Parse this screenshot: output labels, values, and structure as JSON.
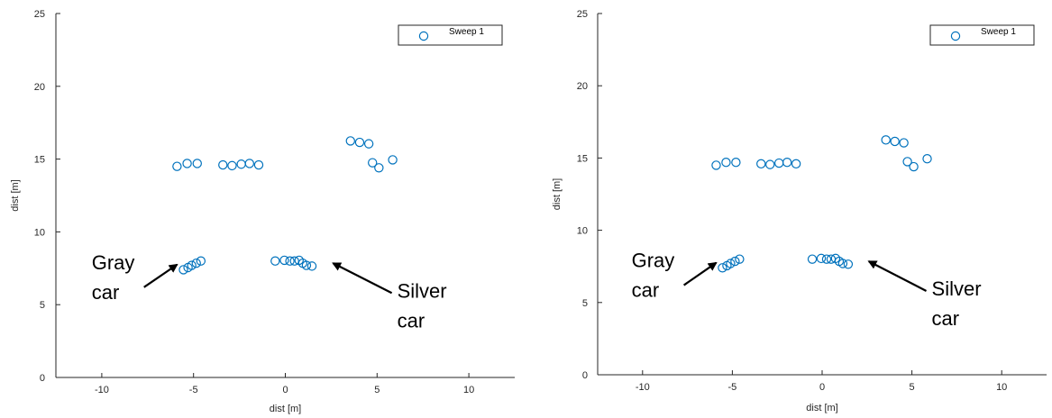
{
  "chart_data": [
    {
      "type": "scatter",
      "xlabel": "dist [m]",
      "ylabel": "dist [m]",
      "xlim": [
        -12.5,
        12.5
      ],
      "ylim": [
        0,
        25
      ],
      "xticks": [
        -10,
        -5,
        0,
        5,
        10
      ],
      "yticks": [
        0,
        5,
        10,
        15,
        20,
        25
      ],
      "xtick_labels": [
        "-10",
        "-5",
        "0",
        "5",
        "10"
      ],
      "ytick_labels": [
        "0",
        "5",
        "10",
        "15",
        "20",
        "25"
      ],
      "grid": false,
      "legend": {
        "position": "top-right",
        "entries": [
          "Sweep 1"
        ]
      },
      "series": [
        {
          "name": "Sweep 1",
          "color": "#0072BD",
          "marker": "open-circle",
          "points": [
            [
              -5.9,
              14.5
            ],
            [
              -5.35,
              14.7
            ],
            [
              -4.8,
              14.7
            ],
            [
              -3.4,
              14.6
            ],
            [
              -2.9,
              14.55
            ],
            [
              -2.4,
              14.65
            ],
            [
              -1.95,
              14.7
            ],
            [
              -1.45,
              14.6
            ],
            [
              3.55,
              16.25
            ],
            [
              4.05,
              16.15
            ],
            [
              4.55,
              16.05
            ],
            [
              4.75,
              14.75
            ],
            [
              5.1,
              14.4
            ],
            [
              5.85,
              14.95
            ],
            [
              -5.55,
              7.4
            ],
            [
              -5.3,
              7.55
            ],
            [
              -5.1,
              7.7
            ],
            [
              -4.85,
              7.85
            ],
            [
              -4.6,
              8.0
            ],
            [
              -0.55,
              8.0
            ],
            [
              -0.05,
              8.05
            ],
            [
              0.25,
              8.0
            ],
            [
              0.5,
              8.0
            ],
            [
              0.75,
              8.05
            ],
            [
              0.95,
              7.85
            ],
            [
              1.15,
              7.7
            ],
            [
              1.45,
              7.65
            ]
          ]
        }
      ],
      "annotations": [
        {
          "text_lines": [
            "Gray",
            "car"
          ],
          "arrow_from": [
            -7.7,
            6.2
          ],
          "arrow_to": [
            -5.9,
            7.75
          ]
        },
        {
          "text_lines": [
            "Silver",
            "car"
          ],
          "arrow_from": [
            5.8,
            5.8
          ],
          "arrow_to": [
            2.6,
            7.85
          ]
        }
      ]
    },
    {
      "type": "scatter",
      "xlabel": "dist [m]",
      "ylabel": "dist [m]",
      "xlim": [
        -12.5,
        12.5
      ],
      "ylim": [
        0,
        25
      ],
      "xticks": [
        -10,
        -5,
        0,
        5,
        10
      ],
      "yticks": [
        0,
        5,
        10,
        15,
        20,
        25
      ],
      "xtick_labels": [
        "-10",
        "-5",
        "0",
        "5",
        "10"
      ],
      "ytick_labels": [
        "0",
        "5",
        "10",
        "15",
        "20",
        "25"
      ],
      "grid": false,
      "legend": {
        "position": "top-right",
        "entries": [
          "Sweep 1"
        ]
      },
      "series": [
        {
          "name": "Sweep 1",
          "color": "#0072BD",
          "marker": "open-circle",
          "points": [
            [
              -5.9,
              14.5
            ],
            [
              -5.35,
              14.7
            ],
            [
              -4.8,
              14.7
            ],
            [
              -3.4,
              14.6
            ],
            [
              -2.9,
              14.55
            ],
            [
              -2.4,
              14.65
            ],
            [
              -1.95,
              14.7
            ],
            [
              -1.45,
              14.6
            ],
            [
              3.55,
              16.25
            ],
            [
              4.05,
              16.15
            ],
            [
              4.55,
              16.05
            ],
            [
              4.75,
              14.75
            ],
            [
              5.1,
              14.4
            ],
            [
              5.85,
              14.95
            ],
            [
              -5.55,
              7.4
            ],
            [
              -5.3,
              7.55
            ],
            [
              -5.1,
              7.7
            ],
            [
              -4.85,
              7.85
            ],
            [
              -4.6,
              8.0
            ],
            [
              -0.55,
              8.0
            ],
            [
              -0.05,
              8.05
            ],
            [
              0.25,
              8.0
            ],
            [
              0.5,
              8.0
            ],
            [
              0.75,
              8.05
            ],
            [
              0.95,
              7.85
            ],
            [
              1.15,
              7.7
            ],
            [
              1.45,
              7.65
            ]
          ]
        }
      ],
      "annotations": [
        {
          "text_lines": [
            "Gray",
            "car"
          ],
          "arrow_from": [
            -7.7,
            6.2
          ],
          "arrow_to": [
            -5.9,
            7.75
          ]
        },
        {
          "text_lines": [
            "Silver",
            "car"
          ],
          "arrow_from": [
            5.8,
            5.8
          ],
          "arrow_to": [
            2.6,
            7.85
          ]
        }
      ]
    }
  ]
}
